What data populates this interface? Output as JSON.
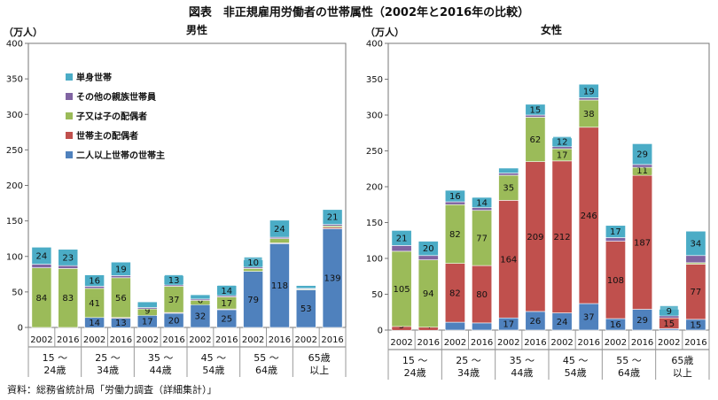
{
  "figure": {
    "title": "図表　非正規雇用労働者の世帯属性（2002年と2016年の比較）",
    "source": "資料：総務省統計局「労働力調査（詳細集計）」"
  },
  "colors": {
    "two_plus_head": "#4f81bd",
    "spouse_of_head": "#c0504d",
    "child": "#9bbb59",
    "other_relatives": "#8064a2",
    "single": "#4bacc6"
  },
  "chart_data": [
    {
      "type": "bar",
      "stacked": true,
      "title": "男性",
      "ylabel": "（万人）",
      "ylim": [
        0,
        400
      ],
      "yticks": [
        "0",
        "50",
        "100",
        "150",
        "200",
        "250",
        "300",
        "350",
        "400"
      ],
      "grid": false,
      "legend_position": "top-left",
      "age_groups": [
        {
          "line1": "15 ～",
          "line2": "24歳"
        },
        {
          "line1": "25 ～",
          "line2": "34歳"
        },
        {
          "line1": "35 ～",
          "line2": "44歳"
        },
        {
          "line1": "45 ～",
          "line2": "54歳"
        },
        {
          "line1": "55 ～",
          "line2": "64歳"
        },
        {
          "line1": "65歳",
          "line2": "以上"
        }
      ],
      "years": [
        "2002",
        "2016"
      ],
      "categories": [
        "15～24歳 2002",
        "15～24歳 2016",
        "25～34歳 2002",
        "25～34歳 2016",
        "35～44歳 2002",
        "35～44歳 2016",
        "45～54歳 2002",
        "45～54歳 2016",
        "55～64歳 2002",
        "55～64歳 2016",
        "65歳以上 2002",
        "65歳以上 2016"
      ],
      "series": [
        {
          "name": "二人以上世帯の世帯主",
          "color_key": "two_plus_head",
          "values": [
            0,
            0,
            14,
            13,
            17,
            20,
            32,
            25,
            79,
            118,
            53,
            139
          ],
          "labels": [
            "",
            "",
            "14",
            "13",
            "17",
            "20",
            "32",
            "25",
            "79",
            "118",
            "53",
            "139"
          ]
        },
        {
          "name": "世帯主の配偶者",
          "color_key": "spouse_of_head",
          "values": [
            0,
            0,
            0,
            1,
            0,
            1,
            0,
            1,
            0,
            1,
            0,
            2
          ],
          "labels": [
            "",
            "",
            "",
            "",
            "",
            "",
            "",
            "",
            "",
            "",
            "",
            ""
          ]
        },
        {
          "name": "子又は子の配偶者",
          "color_key": "child",
          "values": [
            84,
            83,
            41,
            56,
            9,
            37,
            6,
            17,
            4,
            6,
            1,
            2
          ],
          "labels": [
            "84",
            "83",
            "41",
            "56",
            "9",
            "37",
            "6",
            "17",
            "",
            "",
            "",
            ""
          ]
        },
        {
          "name": "その他の親族世帯員",
          "color_key": "other_relatives",
          "values": [
            5,
            4,
            3,
            3,
            2,
            2,
            2,
            2,
            2,
            2,
            1,
            2
          ],
          "labels": [
            "",
            "",
            "",
            "",
            "",
            "",
            "",
            "",
            "",
            "",
            "",
            ""
          ]
        },
        {
          "name": "単身世帯",
          "color_key": "single",
          "values": [
            24,
            23,
            16,
            19,
            8,
            13,
            6,
            14,
            10,
            24,
            4,
            21
          ],
          "labels": [
            "24",
            "23",
            "16",
            "19",
            "",
            "13",
            "",
            "14",
            "10",
            "24",
            "",
            "21"
          ]
        }
      ]
    },
    {
      "type": "bar",
      "stacked": true,
      "title": "女性",
      "ylabel": "（万人）",
      "ylim": [
        0,
        400
      ],
      "yticks": [
        "0",
        "50",
        "100",
        "150",
        "200",
        "250",
        "300",
        "350",
        "400"
      ],
      "grid": false,
      "age_groups": [
        {
          "line1": "15 ～",
          "line2": "24歳"
        },
        {
          "line1": "25 ～",
          "line2": "34歳"
        },
        {
          "line1": "35 ～",
          "line2": "44歳"
        },
        {
          "line1": "45 ～",
          "line2": "54歳"
        },
        {
          "line1": "55 ～",
          "line2": "64歳"
        },
        {
          "line1": "65歳",
          "line2": "以上"
        }
      ],
      "years": [
        "2002",
        "2016"
      ],
      "categories": [
        "15～24歳 2002",
        "15～24歳 2016",
        "25～34歳 2002",
        "25～34歳 2016",
        "35～44歳 2002",
        "35～44歳 2016",
        "45～54歳 2002",
        "45～54歳 2016",
        "55～64歳 2002",
        "55～64歳 2016",
        "65歳以上 2002",
        "65歳以上 2016"
      ],
      "series": [
        {
          "name": "二人以上世帯の世帯主",
          "color_key": "two_plus_head",
          "values": [
            0,
            0,
            11,
            10,
            17,
            26,
            24,
            37,
            16,
            29,
            2,
            15
          ],
          "labels": [
            "",
            "",
            "",
            "",
            "17",
            "26",
            "24",
            "37",
            "16",
            "29",
            "",
            "15"
          ]
        },
        {
          "name": "世帯主の配偶者",
          "color_key": "spouse_of_head",
          "values": [
            5,
            4,
            82,
            80,
            164,
            209,
            212,
            246,
            108,
            187,
            15,
            77
          ],
          "labels": [
            "5",
            "4",
            "82",
            "80",
            "164",
            "209",
            "212",
            "246",
            "108",
            "187",
            "15",
            "77"
          ]
        },
        {
          "name": "子又は子の配偶者",
          "color_key": "child",
          "values": [
            105,
            94,
            82,
            77,
            35,
            62,
            17,
            38,
            0,
            11,
            0,
            2
          ],
          "labels": [
            "105",
            "94",
            "82",
            "77",
            "35",
            "62",
            "17",
            "38",
            "",
            "11",
            "",
            ""
          ]
        },
        {
          "name": "その他の親族世帯員",
          "color_key": "other_relatives",
          "values": [
            8,
            6,
            4,
            4,
            3,
            3,
            3,
            3,
            5,
            4,
            3,
            10
          ],
          "labels": [
            "",
            "",
            "",
            "",
            "",
            "",
            "",
            "",
            "",
            "",
            "",
            ""
          ]
        },
        {
          "name": "単身世帯",
          "color_key": "single",
          "values": [
            21,
            20,
            16,
            14,
            7,
            15,
            12,
            19,
            17,
            29,
            9,
            34
          ],
          "labels": [
            "21",
            "20",
            "16",
            "14",
            "",
            "15",
            "12",
            "19",
            "17",
            "29",
            "9",
            "34"
          ]
        }
      ]
    }
  ]
}
